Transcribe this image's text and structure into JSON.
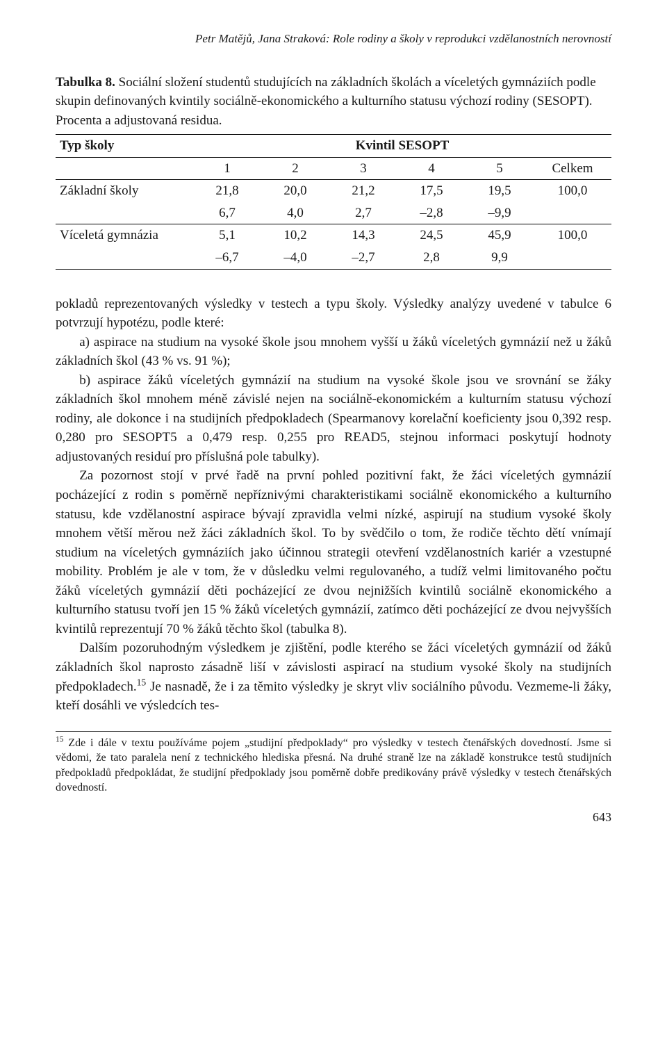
{
  "running_head": "Petr Matějů, Jana Straková: Role rodiny a školy v reprodukci vzdělanostních nerovností",
  "table": {
    "label": "Tabulka 8.",
    "caption": "Sociální složení studentů studujících na základních školách a víceletých gymnáziích podle skupin definovaných kvintily sociálně-ekonomického a kulturního statusu výchozí rodiny (SESOPT). Procenta a adjustovaná residua.",
    "stub_head": "Typ školy",
    "super_head": "Kvintil SESOPT",
    "col_heads": [
      "1",
      "2",
      "3",
      "4",
      "5",
      "Celkem"
    ],
    "rows": [
      {
        "label": "Základní školy",
        "line1": [
          "21,8",
          "20,0",
          "21,2",
          "17,5",
          "19,5",
          "100,0"
        ],
        "line2": [
          "6,7",
          "4,0",
          "2,7",
          "–2,8",
          "–9,9",
          ""
        ]
      },
      {
        "label": "Víceletá gymnázia",
        "line1": [
          "5,1",
          "10,2",
          "14,3",
          "24,5",
          "45,9",
          "100,0"
        ],
        "line2": [
          "–6,7",
          "–4,0",
          "–2,7",
          "2,8",
          "9,9",
          ""
        ]
      }
    ]
  },
  "body": {
    "p1a": "pokladů reprezentovaných výsledky v testech a typu školy. Výsledky analýzy uvedené v tabulce 6 potvrzují hypotézu, podle které:",
    "li_a": "a) aspirace na studium na vysoké škole jsou mnohem vyšší u žáků víceletých gymnázií než u žáků základních škol (43 % vs. 91 %);",
    "li_b": "b) aspirace žáků víceletých gymnázií na studium na vysoké škole jsou ve srovnání se žáky základních škol mnohem méně závislé nejen na sociálně-ekonomickém a kulturním statusu výchozí rodiny, ale dokonce i na studijních předpokladech (Spearmanovy korelační koeficienty jsou 0,392 resp. 0,280 pro SESOPT5 a 0,479 resp. 0,255 pro READ5, stejnou informaci poskytují hodnoty adjustovaných residuí pro příslušná pole tabulky).",
    "p2": "Za pozornost stojí v prvé řadě na první pohled pozitivní fakt, že žáci víceletých gymnázií pocházející z rodin s poměrně nepříznivými charakteristikami sociálně ekonomického a kulturního statusu, kde vzdělanostní aspirace bývají zpravidla velmi nízké, aspirují na studium vysoké školy mnohem větší měrou než žáci základních škol. To by svědčilo o tom, že rodiče těchto dětí vnímají studium na víceletých gymnáziích jako účinnou strategii otevření vzdělanostních kariér a vzestupné mobility. Problém je ale v tom, že v důsledku velmi regulovaného, a tudíž velmi limitovaného počtu žáků víceletých gymnázií děti pocházející ze dvou nejnižších kvintilů sociálně ekonomického a kulturního statusu tvoří jen 15 % žáků víceletých gymnázií, zatímco děti pocházející ze dvou nejvyšších kvintilů reprezentují 70 % žáků těchto škol (tabulka 8).",
    "p3_before": "Dalším pozoruhodným výsledkem je zjištění, podle kterého se žáci víceletých gymnázií od žáků základních škol naprosto zásadně liší v závislosti aspirací na studium vysoké školy na studijních předpokladech.",
    "p3_fn_mark": "15",
    "p3_after": " Je nasnadě, že i za těmito výsledky je skryt vliv sociálního původu. Vezmeme-li žáky, kteří dosáhli ve výsledcích tes-"
  },
  "footnote": {
    "mark": "15",
    "text": " Zde i dále v textu používáme pojem „studijní předpoklady“ pro výsledky v testech čtenářských dovedností. Jsme si vědomi, že tato paralela není z technického hlediska přesná. Na druhé straně lze na základě konstrukce testů studijních předpokladů předpokládat, že studijní předpoklady jsou poměrně dobře predikovány právě výsledky v testech čtenářských dovedností."
  },
  "page_number": "643"
}
